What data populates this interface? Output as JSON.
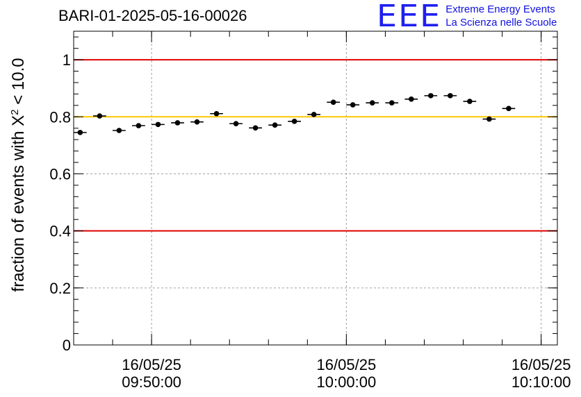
{
  "title": "BARI-01-2025-05-16-00026",
  "logo": {
    "mark": "EEE",
    "line1": "Extreme Energy Events",
    "line2": "La Scienza nelle Scuole"
  },
  "colors": {
    "red_line": "#e00000",
    "yellow_line": "#ffc800",
    "grid": "#a0a0a0",
    "points": "#000000"
  },
  "chart_data": {
    "type": "scatter",
    "title": "BARI-01-2025-05-16-00026",
    "ylabel_prefix": "fraction of events with ",
    "ylabel_symbol": "X",
    "ylabel_superscript": "2",
    "ylabel_suffix": " < 10.0",
    "ylim": [
      0,
      1.1
    ],
    "yticks": [
      {
        "value": 0,
        "label": "0"
      },
      {
        "value": 0.2,
        "label": "0.2"
      },
      {
        "value": 0.4,
        "label": "0.4"
      },
      {
        "value": 0.6,
        "label": "0.6"
      },
      {
        "value": 0.8,
        "label": "0.8"
      },
      {
        "value": 1.0,
        "label": "1"
      }
    ],
    "xlim": [
      "2025-05-16 09:46:00",
      "2025-05-16 10:10:50"
    ],
    "xticks": [
      {
        "time": "2025-05-16 09:50:00",
        "date": "16/05/25",
        "clock": "09:50:00"
      },
      {
        "time": "2025-05-16 10:00:00",
        "date": "16/05/25",
        "clock": "10:00:00"
      },
      {
        "time": "2025-05-16 10:10:00",
        "date": "16/05/25",
        "clock": "10:10:00"
      }
    ],
    "grid": true,
    "reference_lines": [
      {
        "y": 1.0,
        "color": "red"
      },
      {
        "y": 0.8,
        "color": "yellow"
      },
      {
        "y": 0.4,
        "color": "red"
      }
    ],
    "points": [
      {
        "start": "2025-05-16 09:46:00",
        "end": "2025-05-16 09:46:40",
        "y": 0.745
      },
      {
        "start": "2025-05-16 09:47:00",
        "end": "2025-05-16 09:47:40",
        "y": 0.803
      },
      {
        "start": "2025-05-16 09:48:00",
        "end": "2025-05-16 09:48:40",
        "y": 0.752
      },
      {
        "start": "2025-05-16 09:49:00",
        "end": "2025-05-16 09:49:40",
        "y": 0.769
      },
      {
        "start": "2025-05-16 09:50:00",
        "end": "2025-05-16 09:50:40",
        "y": 0.773
      },
      {
        "start": "2025-05-16 09:51:00",
        "end": "2025-05-16 09:51:40",
        "y": 0.779
      },
      {
        "start": "2025-05-16 09:52:00",
        "end": "2025-05-16 09:52:40",
        "y": 0.782
      },
      {
        "start": "2025-05-16 09:53:00",
        "end": "2025-05-16 09:53:40",
        "y": 0.811
      },
      {
        "start": "2025-05-16 09:54:00",
        "end": "2025-05-16 09:54:40",
        "y": 0.776
      },
      {
        "start": "2025-05-16 09:55:00",
        "end": "2025-05-16 09:55:40",
        "y": 0.761
      },
      {
        "start": "2025-05-16 09:56:00",
        "end": "2025-05-16 09:56:40",
        "y": 0.771
      },
      {
        "start": "2025-05-16 09:57:00",
        "end": "2025-05-16 09:57:40",
        "y": 0.784
      },
      {
        "start": "2025-05-16 09:58:00",
        "end": "2025-05-16 09:58:40",
        "y": 0.808
      },
      {
        "start": "2025-05-16 09:59:00",
        "end": "2025-05-16 09:59:40",
        "y": 0.851
      },
      {
        "start": "2025-05-16 10:00:00",
        "end": "2025-05-16 10:00:40",
        "y": 0.842
      },
      {
        "start": "2025-05-16 10:01:00",
        "end": "2025-05-16 10:01:40",
        "y": 0.849
      },
      {
        "start": "2025-05-16 10:02:00",
        "end": "2025-05-16 10:02:40",
        "y": 0.849
      },
      {
        "start": "2025-05-16 10:03:00",
        "end": "2025-05-16 10:03:40",
        "y": 0.862
      },
      {
        "start": "2025-05-16 10:04:00",
        "end": "2025-05-16 10:04:40",
        "y": 0.874
      },
      {
        "start": "2025-05-16 10:05:00",
        "end": "2025-05-16 10:05:40",
        "y": 0.874
      },
      {
        "start": "2025-05-16 10:06:00",
        "end": "2025-05-16 10:06:40",
        "y": 0.854
      },
      {
        "start": "2025-05-16 10:07:00",
        "end": "2025-05-16 10:07:40",
        "y": 0.792
      },
      {
        "start": "2025-05-16 10:08:00",
        "end": "2025-05-16 10:08:40",
        "y": 0.829
      }
    ]
  }
}
